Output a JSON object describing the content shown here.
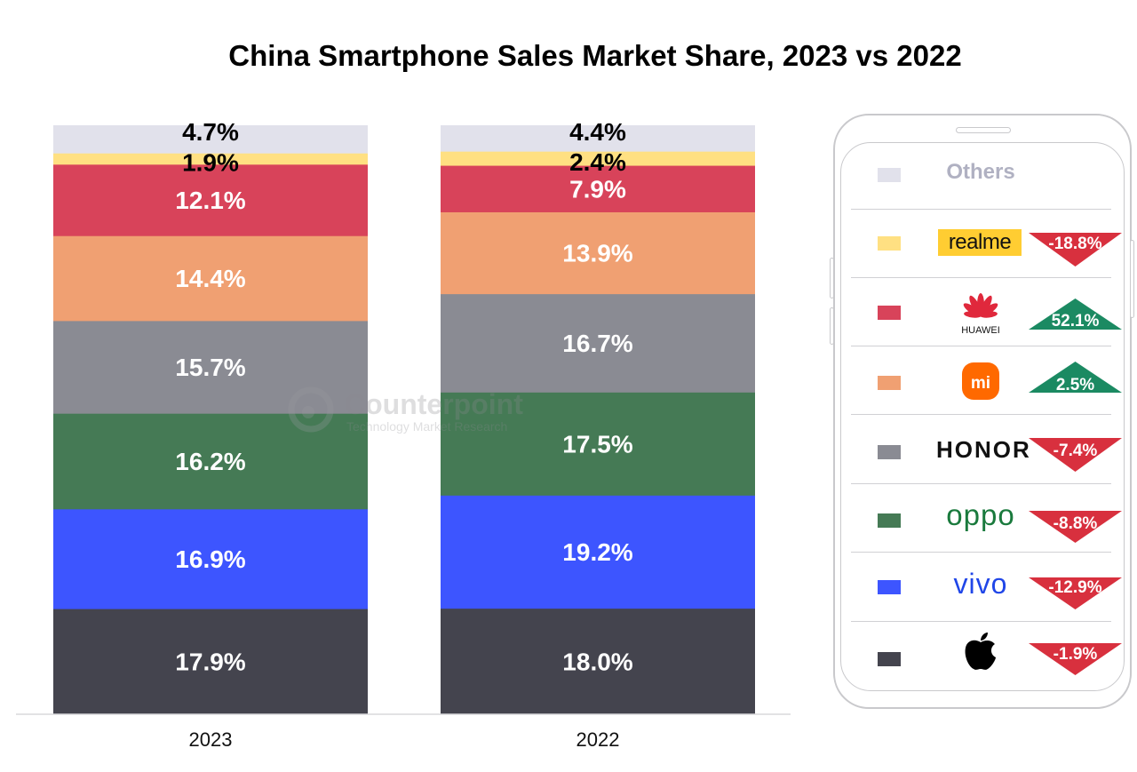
{
  "chart_data": {
    "type": "bar",
    "stacked": true,
    "title": "China Smartphone Sales Market Share, 2023 vs 2022",
    "categories": [
      "2023",
      "2022"
    ],
    "ylim": [
      0,
      100
    ],
    "unit": "%",
    "series": [
      {
        "key": "apple",
        "color": "#44444e",
        "values": [
          17.9,
          18.0
        ],
        "labels": [
          "17.9%",
          "18.0%"
        ],
        "label_color": "#ffffff"
      },
      {
        "key": "vivo",
        "color": "#3d55ff",
        "values": [
          16.9,
          19.2
        ],
        "labels": [
          "16.9%",
          "19.2%"
        ],
        "label_color": "#ffffff"
      },
      {
        "key": "oppo",
        "color": "#457a55",
        "values": [
          16.2,
          17.5
        ],
        "labels": [
          "16.2%",
          "17.5%"
        ],
        "label_color": "#ffffff"
      },
      {
        "key": "honor",
        "color": "#8a8b93",
        "values": [
          15.7,
          16.7
        ],
        "labels": [
          "15.7%",
          "16.7%"
        ],
        "label_color": "#ffffff"
      },
      {
        "key": "xiaomi",
        "color": "#f0a072",
        "values": [
          14.4,
          13.9
        ],
        "labels": [
          "14.4%",
          "13.9%"
        ],
        "label_color": "#ffffff"
      },
      {
        "key": "huawei",
        "color": "#d8435a",
        "values": [
          12.1,
          7.9
        ],
        "labels": [
          "12.1%",
          "7.9%"
        ],
        "label_color": "#ffffff"
      },
      {
        "key": "realme",
        "color": "#ffe082",
        "values": [
          1.9,
          2.4
        ],
        "labels": [
          "1.9%",
          "2.4%"
        ],
        "label_color": "#000000"
      },
      {
        "key": "others",
        "color": "#e1e1eb",
        "values": [
          4.7,
          4.4
        ],
        "labels": [
          "4.7%",
          "4.4%"
        ],
        "label_color": "#000000"
      }
    ]
  },
  "legend": [
    {
      "key": "others",
      "brand": "Others",
      "change": null
    },
    {
      "key": "realme",
      "brand": "realme",
      "change": "-18.8%",
      "direction": "down"
    },
    {
      "key": "huawei",
      "brand": "HUAWEI",
      "change": "52.1%",
      "direction": "up"
    },
    {
      "key": "xiaomi",
      "brand": "mi",
      "change": "2.5%",
      "direction": "up"
    },
    {
      "key": "honor",
      "brand": "HONOR",
      "change": "-7.4%",
      "direction": "down"
    },
    {
      "key": "oppo",
      "brand": "oppo",
      "change": "-8.8%",
      "direction": "down"
    },
    {
      "key": "vivo",
      "brand": "vivo",
      "change": "-12.9%",
      "direction": "down"
    },
    {
      "key": "apple",
      "brand": "",
      "change": "-1.9%",
      "direction": "down"
    }
  ],
  "colors": {
    "up": "#1b8a62",
    "down": "#d8303e"
  },
  "watermark": {
    "name": "Counterpoint",
    "tagline": "Technology Market Research"
  }
}
